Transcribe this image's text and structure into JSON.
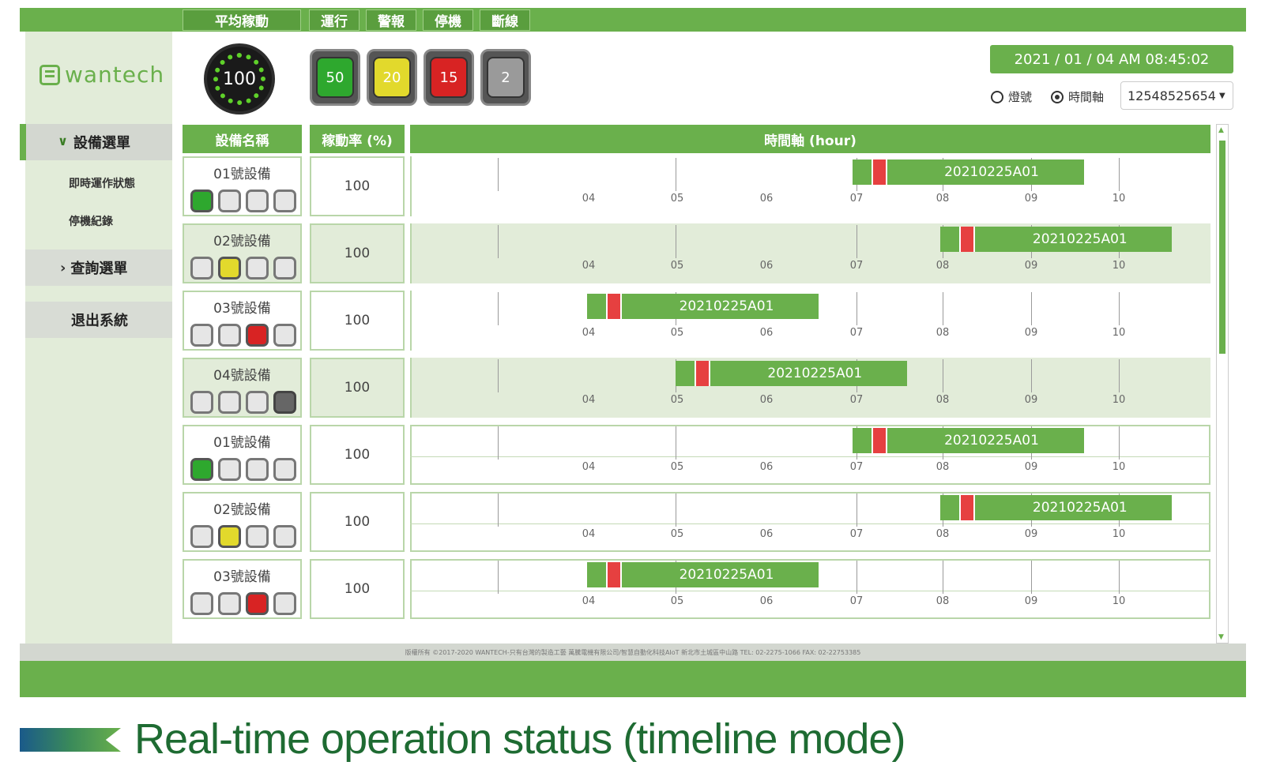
{
  "top_tabs": [
    "平均稼動",
    "運行",
    "警報",
    "停機",
    "斷線"
  ],
  "logo_text": "wantech",
  "sidebar": {
    "active_menu": "設備選單",
    "sub_items": [
      "即時運作狀態",
      "停機紀錄"
    ],
    "query_menu": "查詢選單",
    "exit": "退出系統"
  },
  "gauge": {
    "value": "100"
  },
  "status_counts": [
    {
      "value": "50",
      "color": "#2ea82e"
    },
    {
      "value": "20",
      "color": "#e2d92c"
    },
    {
      "value": "15",
      "color": "#d82323"
    },
    {
      "value": "2",
      "color": "#9a9a9a"
    }
  ],
  "datetime": "2021 / 01 / 04 AM 08:45:02",
  "view_options": {
    "lamp_label": "燈號",
    "timeline_label": "時間軸",
    "selected": "timeline"
  },
  "device_select": "12548525654",
  "table": {
    "headers": {
      "name": "設備名稱",
      "rate": "稼動率 (%)",
      "timeline": "時間軸 (hour)"
    },
    "ticks": [
      "04",
      "05",
      "06",
      "07",
      "08",
      "09",
      "10"
    ],
    "rows": [
      {
        "name": "01號設備",
        "rate": "100",
        "lamps": [
          "green",
          "off",
          "off",
          "off"
        ],
        "job": "20210225A01",
        "start_hour": 7.0
      },
      {
        "name": "02號設備",
        "rate": "100",
        "lamps": [
          "off",
          "yellow",
          "off",
          "off"
        ],
        "job": "20210225A01",
        "start_hour": 8.0
      },
      {
        "name": "03號設備",
        "rate": "100",
        "lamps": [
          "off",
          "off",
          "red",
          "off"
        ],
        "job": "20210225A01",
        "start_hour": 4.0
      },
      {
        "name": "04號設備",
        "rate": "100",
        "lamps": [
          "off",
          "off",
          "off",
          "gray"
        ],
        "job": "20210225A01",
        "start_hour": 5.0
      },
      {
        "name": "01號設備",
        "rate": "100",
        "lamps": [
          "green",
          "off",
          "off",
          "off"
        ],
        "job": "20210225A01",
        "start_hour": 7.0
      },
      {
        "name": "02號設備",
        "rate": "100",
        "lamps": [
          "off",
          "yellow",
          "off",
          "off"
        ],
        "job": "20210225A01",
        "start_hour": 8.0
      },
      {
        "name": "03號設備",
        "rate": "100",
        "lamps": [
          "off",
          "off",
          "red",
          "off"
        ],
        "job": "20210225A01",
        "start_hour": 4.0
      }
    ]
  },
  "footer_text": "版權所有 ©2017-2020 WANTECH-只有台灣的製造工藝 萬騰電機有限公司/智慧自動化科技AIoT 新北市土城區中山路 TEL: 02-2275-1066 FAX: 02-22753385",
  "caption": "Real-time operation status (timeline mode)"
}
